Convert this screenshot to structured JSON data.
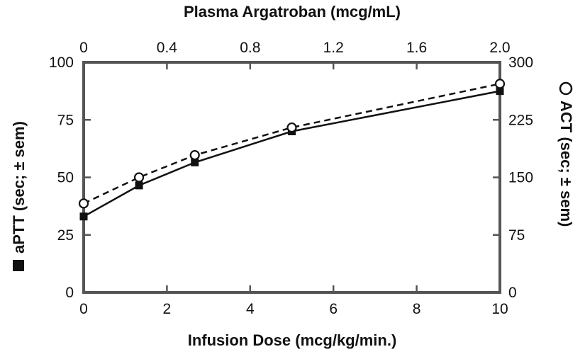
{
  "chart_data": {
    "type": "line",
    "x": [
      0,
      1.33,
      2.67,
      5,
      10
    ],
    "xlabel": "Infusion Dose (mcg/kg/min.)",
    "xlim": [
      0,
      10
    ],
    "xticks": [
      "0",
      "2",
      "4",
      "6",
      "8",
      "10"
    ],
    "x2label": "Plasma Argatroban (mcg/mL)",
    "x2lim": [
      0,
      2.0
    ],
    "x2ticks": [
      "0",
      "0.4",
      "0.8",
      "1.2",
      "1.6",
      "2.0"
    ],
    "ylabel": "aPTT (sec; ± sem)",
    "ylim": [
      0,
      100
    ],
    "yticks": [
      "0",
      "25",
      "50",
      "75",
      "100"
    ],
    "y2label": "ACT (sec; ± sem)",
    "y2lim": [
      0,
      300
    ],
    "y2ticks": [
      "0",
      "75",
      "150",
      "225",
      "300"
    ],
    "series": [
      {
        "name": "aPTT",
        "axis": "left",
        "marker": "filled-square",
        "line": "solid",
        "color": "#111111",
        "values": [
          33,
          46.5,
          56.5,
          70,
          87.5
        ]
      },
      {
        "name": "ACT",
        "axis": "right",
        "marker": "open-circle",
        "line": "dashed",
        "color": "#111111",
        "values": [
          116,
          150,
          179,
          215,
          272
        ]
      }
    ],
    "grid": false
  }
}
